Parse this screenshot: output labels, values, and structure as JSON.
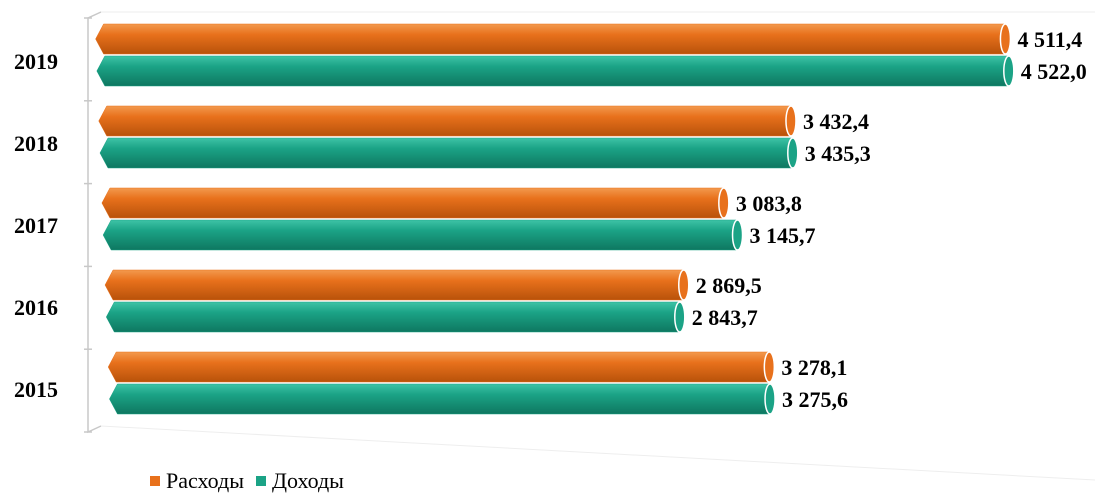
{
  "chart_data": {
    "type": "bar",
    "orientation": "horizontal",
    "categories": [
      "2019",
      "2018",
      "2017",
      "2016",
      "2015"
    ],
    "series": [
      {
        "name": "Расходы",
        "color": "#E8711C",
        "values": [
          4511.4,
          3432.4,
          3083.8,
          2869.5,
          3278.1
        ],
        "labels": [
          "4 511,4",
          "3 432,4",
          "3 083,8",
          "2 869,5",
          "3 278,1"
        ]
      },
      {
        "name": "Доходы",
        "color": "#1BA386",
        "values": [
          4522.0,
          3435.3,
          3145.7,
          2843.7,
          3275.6
        ],
        "labels": [
          "4 522,0",
          "3 435,3",
          "3 145,7",
          "2 843,7",
          "3 275,6"
        ]
      }
    ],
    "xlim": [
      0,
      4522.0
    ],
    "legend_position": "bottom-left",
    "title": "",
    "xlabel": "",
    "ylabel": ""
  },
  "legend": [
    {
      "label": "Расходы",
      "color": "#E8711C"
    },
    {
      "label": "Доходы",
      "color": "#1BA386"
    }
  ]
}
